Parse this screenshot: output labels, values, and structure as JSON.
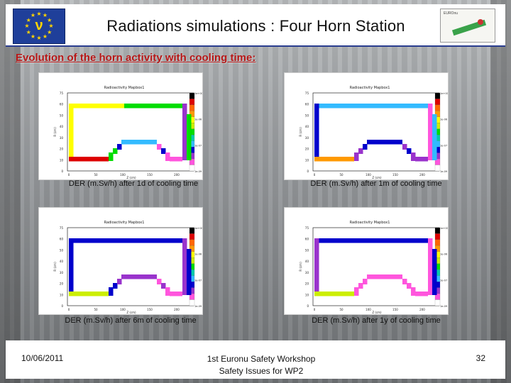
{
  "slide": {
    "title": "Radiations simulations : Four Horn Station",
    "subtitle": "Evolution of the horn activity with cooling time:",
    "logo_symbol": "ν",
    "logo_text": "EUROnu"
  },
  "footer": {
    "date": "10/06/2011",
    "line1": "1st Euronu Safety Workshop",
    "line2": "Safety Issues for WP2",
    "page": "32"
  },
  "panels": [
    {
      "caption": "DER (m.Sv/h) after 1d of cooling time",
      "plot_title": "Radioactivity Mapbox1",
      "colors": {
        "top": "#ffff00",
        "top2": "#00dd00",
        "left": "#ffff00",
        "right": "#9933cc",
        "bottom": "#dd0000",
        "bump_left": "#00dd00",
        "bump_mid": "#0000cc",
        "bump_top": "#33bbff",
        "bump_right": "#ff55dd"
      }
    },
    {
      "caption": "DER (m.Sv/h) after 1m of cooling time",
      "plot_title": "Radioactivity Mapbox1",
      "colors": {
        "top": "#33bbff",
        "top2": "#33bbff",
        "left": "#0000cc",
        "right": "#ff55dd",
        "bottom": "#ff9900",
        "bump_left": "#9933cc",
        "bump_mid": "#0000cc",
        "bump_top": "#0000cc",
        "bump_right": "#9933cc"
      }
    },
    {
      "caption": "DER (m.Sv/h) after 6m of cooling time",
      "plot_title": "Radioactivity Mapbox1",
      "colors": {
        "top": "#0000cc",
        "top2": "#0000cc",
        "left": "#0000cc",
        "right": "#9933cc",
        "bottom": "#ccee00",
        "bump_left": "#0000cc",
        "bump_mid": "#9933cc",
        "bump_top": "#9933cc",
        "bump_right": "#ff55dd"
      }
    },
    {
      "caption": "DER (m.Sv/h) after 1y of cooling time",
      "plot_title": "Radioactivity Mapbox1",
      "colors": {
        "top": "#0000cc",
        "top2": "#0000cc",
        "left": "#9933cc",
        "right": "#ff55dd",
        "bottom": "#ccee00",
        "bump_left": "#ff55dd",
        "bump_mid": "#ff55dd",
        "bump_top": "#ff55dd",
        "bump_right": "#ff55dd"
      }
    }
  ],
  "axis": {
    "y_ticks": [
      "75",
      "60",
      "50",
      "40",
      "30",
      "20",
      "10",
      "0"
    ],
    "x_ticks": [
      "0",
      "50",
      "100",
      "150",
      "200"
    ],
    "x_label": "Z (cm)",
    "y_label": "R (cm)",
    "scale_labels": [
      "1e+00",
      "1e-06",
      "1e-07",
      "1e-09"
    ],
    "scale_colors": [
      "#000000",
      "#dd0000",
      "#ff6600",
      "#ff9900",
      "#ffff00",
      "#ccee00",
      "#00dd00",
      "#00ccaa",
      "#33bbff",
      "#0000cc",
      "#9933cc",
      "#ff55dd",
      "#ffffff"
    ]
  }
}
